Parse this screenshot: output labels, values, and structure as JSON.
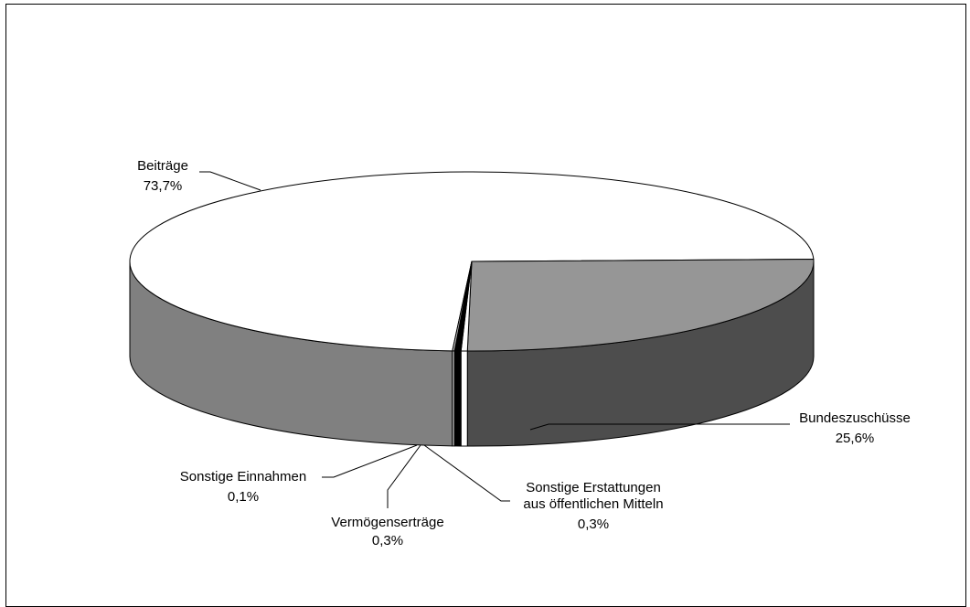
{
  "chart_data": {
    "type": "pie",
    "title": "",
    "three_d": true,
    "slices": [
      {
        "label": "Beiträge",
        "value_label": "73,7%",
        "value": 73.7,
        "top_color": "#ffffff",
        "side_color": "#808080"
      },
      {
        "label": "Bundeszuschüsse",
        "value_label": "25,6%",
        "value": 25.6,
        "top_color": "#969696",
        "side_color": "#4d4d4d"
      },
      {
        "label_lines": [
          "Sonstige Erstattungen",
          "aus öffentlichen Mitteln"
        ],
        "value_label": "0,3%",
        "value": 0.3,
        "top_color": "#ffffff",
        "side_color": "#ffffff"
      },
      {
        "label": "Vermögenserträge",
        "value_label": "0,3%",
        "value": 0.3,
        "top_color": "#000000",
        "side_color": "#000000"
      },
      {
        "label": "Sonstige Einnahmen",
        "value_label": "0,1%",
        "value": 0.1,
        "top_color": "#c0c0c0",
        "side_color": "#c0c0c0"
      }
    ]
  }
}
